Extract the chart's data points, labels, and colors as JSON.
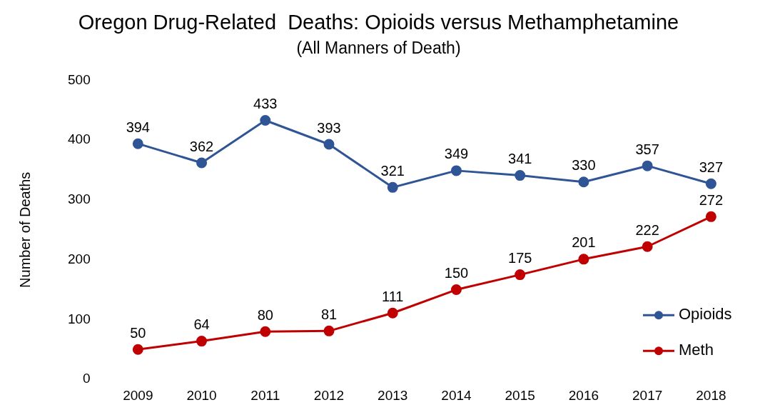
{
  "chart_data": {
    "type": "line",
    "title": "Oregon Drug-Related  Deaths: Opioids versus Methamphetamine",
    "subtitle": "(All Manners of Death)",
    "ylabel": "Number of Deaths",
    "categories": [
      "2009",
      "2010",
      "2011",
      "2012",
      "2013",
      "2014",
      "2015",
      "2016",
      "2017",
      "2018"
    ],
    "series": [
      {
        "name": "Opioids",
        "color": "#2f5597",
        "values": [
          394,
          362,
          433,
          393,
          321,
          349,
          341,
          330,
          357,
          327
        ]
      },
      {
        "name": "Meth",
        "color": "#c00000",
        "values": [
          50,
          64,
          80,
          81,
          111,
          150,
          175,
          201,
          222,
          272
        ]
      }
    ],
    "ylim": [
      0,
      500
    ],
    "yticks": [
      0,
      100,
      200,
      300,
      400,
      500
    ],
    "grid": false,
    "legend": "bottom right",
    "marker": "circle",
    "line_style": "solid",
    "data_labels": true
  }
}
